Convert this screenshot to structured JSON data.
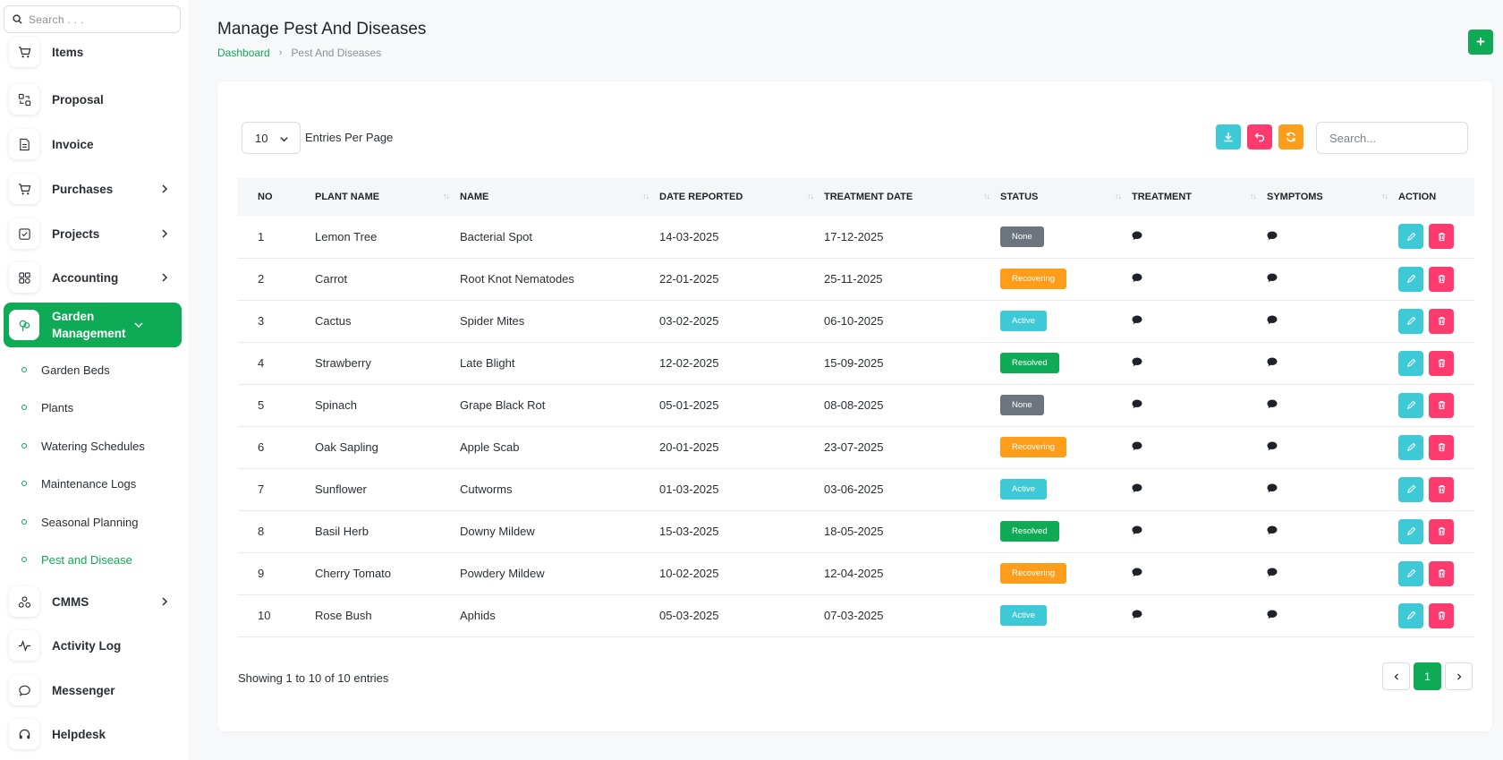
{
  "sidebar": {
    "search_placeholder": "Search . . .",
    "nav_items": [
      {
        "label": "Items",
        "icon": "cart-icon"
      },
      {
        "label": "Proposal",
        "icon": "proposal-icon"
      },
      {
        "label": "Invoice",
        "icon": "invoice-icon"
      },
      {
        "label": "Purchases",
        "icon": "cart-icon"
      },
      {
        "label": "Projects",
        "icon": "checkbox-icon"
      },
      {
        "label": "Accounting",
        "icon": "grid-icon"
      },
      {
        "label": "Garden Management",
        "icon": "plant-icon"
      },
      {
        "label": "CMMS",
        "icon": "cmms-icon"
      },
      {
        "label": "Activity Log",
        "icon": "pulse-icon"
      },
      {
        "label": "Messenger",
        "icon": "chat-bubble-icon"
      },
      {
        "label": "Helpdesk",
        "icon": "headset-icon"
      }
    ],
    "sub_items": [
      {
        "label": "Garden Beds"
      },
      {
        "label": "Plants"
      },
      {
        "label": "Watering Schedules"
      },
      {
        "label": "Maintenance Logs"
      },
      {
        "label": "Seasonal Planning"
      },
      {
        "label": "Pest and Disease"
      }
    ]
  },
  "header": {
    "title": "Manage Pest And Diseases",
    "breadcrumb": [
      "Dashboard",
      "Pest And Diseases"
    ],
    "add_label": "+"
  },
  "toolbar": {
    "per_page": "10",
    "per_page_label": "Entries Per Page",
    "search_placeholder": "Search..."
  },
  "table": {
    "columns": [
      "NO",
      "PLANT NAME",
      "NAME",
      "DATE REPORTED",
      "TREATMENT DATE",
      "STATUS",
      "TREATMENT",
      "SYMPTOMS",
      "ACTION"
    ],
    "rows": [
      {
        "no": "1",
        "plant": "Lemon Tree",
        "name": "Bacterial Spot",
        "reported": "14-03-2025",
        "treated": "17-12-2025",
        "status": "None"
      },
      {
        "no": "2",
        "plant": "Carrot",
        "name": "Root Knot Nematodes",
        "reported": "22-01-2025",
        "treated": "25-11-2025",
        "status": "Recovering"
      },
      {
        "no": "3",
        "plant": "Cactus",
        "name": "Spider Mites",
        "reported": "03-02-2025",
        "treated": "06-10-2025",
        "status": "Active"
      },
      {
        "no": "4",
        "plant": "Strawberry",
        "name": "Late Blight",
        "reported": "12-02-2025",
        "treated": "15-09-2025",
        "status": "Resolved"
      },
      {
        "no": "5",
        "plant": "Spinach",
        "name": "Grape Black Rot",
        "reported": "05-01-2025",
        "treated": "08-08-2025",
        "status": "None"
      },
      {
        "no": "6",
        "plant": "Oak Sapling",
        "name": "Apple Scab",
        "reported": "20-01-2025",
        "treated": "23-07-2025",
        "status": "Recovering"
      },
      {
        "no": "7",
        "plant": "Sunflower",
        "name": "Cutworms",
        "reported": "01-03-2025",
        "treated": "03-06-2025",
        "status": "Active"
      },
      {
        "no": "8",
        "plant": "Basil Herb",
        "name": "Downy Mildew",
        "reported": "15-03-2025",
        "treated": "18-05-2025",
        "status": "Resolved"
      },
      {
        "no": "9",
        "plant": "Cherry Tomato",
        "name": "Powdery Mildew",
        "reported": "10-02-2025",
        "treated": "12-04-2025",
        "status": "Recovering"
      },
      {
        "no": "10",
        "plant": "Rose Bush",
        "name": "Aphids",
        "reported": "05-03-2025",
        "treated": "07-03-2025",
        "status": "Active"
      }
    ]
  },
  "status_colors": {
    "None": "#6c757d",
    "Recovering": "#fd9d1a",
    "Active": "#3ec9d6",
    "Resolved": "#0faa56"
  },
  "colors": {
    "accent": "#0faa56",
    "info": "#3ec9d6",
    "danger": "#ff3a6e",
    "warning": "#fd9d1a"
  },
  "footer": {
    "showing": "Showing 1 to 10 of 10 entries",
    "page": "1"
  }
}
